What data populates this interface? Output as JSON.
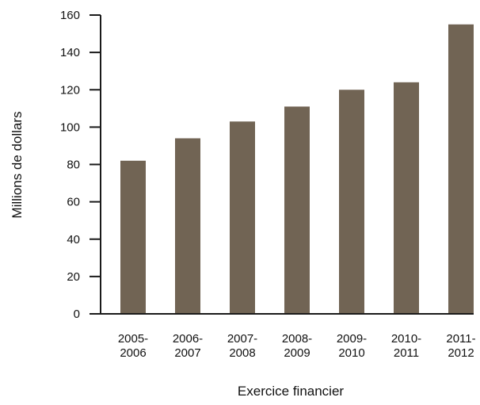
{
  "chart_data": {
    "type": "bar",
    "categories": [
      [
        "2005-",
        "2006"
      ],
      [
        "2006-",
        "2007"
      ],
      [
        "2007-",
        "2008"
      ],
      [
        "2008-",
        "2009"
      ],
      [
        "2009-",
        "2010"
      ],
      [
        "2010-",
        "2011"
      ],
      [
        "2011-",
        "2012"
      ]
    ],
    "values": [
      82,
      94,
      103,
      111,
      120,
      124,
      155
    ],
    "xlabel": "Exercice financier",
    "ylabel": "Millions de dollars",
    "ylim": [
      0,
      160
    ],
    "yticks": [
      0,
      20,
      40,
      60,
      80,
      100,
      120,
      140,
      160
    ],
    "grid": false,
    "bar_color": "#716454",
    "axis_color": "#1a1a1a"
  }
}
